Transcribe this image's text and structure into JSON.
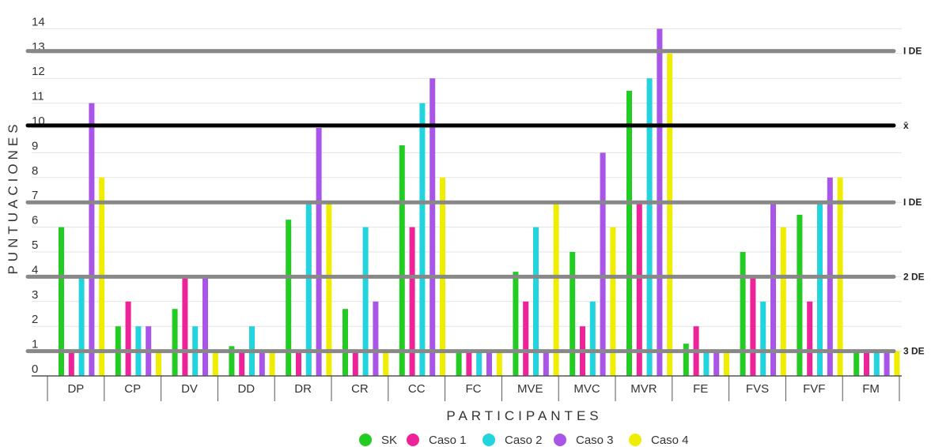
{
  "chart_data": {
    "type": "bar",
    "xlabel": "PARTICIPANTES",
    "ylabel": "PUNTUACIONES",
    "ylim": [
      0,
      14
    ],
    "yticks": [
      "0",
      "1",
      "2",
      "3",
      "4",
      "5",
      "6",
      "7",
      "8",
      "9",
      "10",
      "11",
      "12",
      "13",
      "14"
    ],
    "grid": true,
    "legend_position": "bottom",
    "categories": [
      "DP",
      "CP",
      "DV",
      "DD",
      "DR",
      "CR",
      "CC",
      "FC",
      "MVE",
      "MVC",
      "MVR",
      "FE",
      "FVS",
      "FVF",
      "FM"
    ],
    "series": [
      {
        "name": "SK",
        "color": "#22cc22",
        "values": [
          6,
          2,
          2.7,
          1.2,
          6.3,
          2.7,
          9.3,
          1,
          4.2,
          5,
          11.5,
          1.3,
          5,
          6.5,
          1
        ]
      },
      {
        "name": "Caso 1",
        "color": "#ee2299",
        "values": [
          1,
          3,
          4,
          1,
          1,
          1,
          6,
          1,
          3,
          2,
          7,
          2,
          4,
          3,
          1
        ]
      },
      {
        "name": "Caso 2",
        "color": "#22d4dd",
        "values": [
          4,
          2,
          2,
          2,
          7,
          6,
          11,
          1,
          6,
          3,
          12,
          1,
          3,
          7,
          1
        ]
      },
      {
        "name": "Caso 3",
        "color": "#a855e8",
        "values": [
          11,
          2,
          4,
          1,
          10,
          3,
          12,
          1,
          1,
          9,
          14,
          1,
          7,
          8,
          1
        ]
      },
      {
        "name": "Caso 4",
        "color": "#f0ee00",
        "values": [
          8,
          1,
          1,
          1,
          7,
          1,
          8,
          1,
          7,
          6,
          13,
          1,
          6,
          8,
          1
        ]
      }
    ],
    "reference_lines": [
      {
        "label": "I DE",
        "value": 13.1,
        "color": "#888888"
      },
      {
        "label": "x̄",
        "value": 10.1,
        "color": "#000000"
      },
      {
        "label": "I DE",
        "value": 7,
        "color": "#888888"
      },
      {
        "label": "2 DE",
        "value": 4,
        "color": "#888888"
      },
      {
        "label": "3 DE",
        "value": 1,
        "color": "#888888"
      }
    ]
  }
}
